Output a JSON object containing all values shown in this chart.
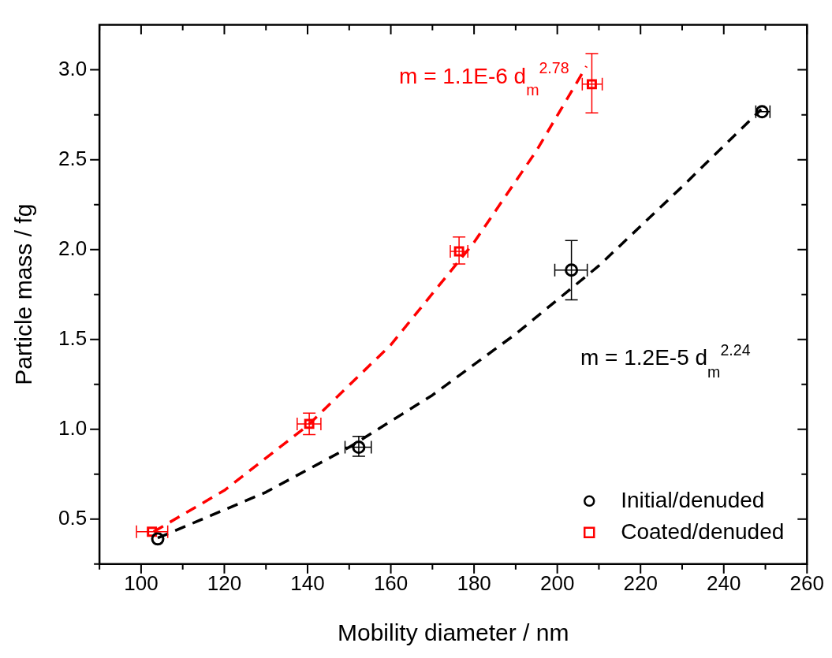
{
  "chart_data": {
    "type": "scatter",
    "xlabel": "Mobility diameter / nm",
    "ylabel": "Particle mass / fg",
    "xlim": [
      90,
      260
    ],
    "xticks": [
      100,
      120,
      140,
      160,
      180,
      200,
      220,
      240,
      260
    ],
    "ylim": [
      0.25,
      3.25
    ],
    "yticks": [
      0.5,
      {
        "value": 1,
        "label": "1.0"
      },
      1.5,
      {
        "value": 2,
        "label": "2.0"
      },
      2.5,
      {
        "value": 3,
        "label": "3.0"
      }
    ],
    "grid": false,
    "legend": "bottom right",
    "series": [
      {
        "name": "Initial/denuded",
        "color": "#000000",
        "marker": "circle",
        "x": [
          104,
          152.3,
          203.4,
          249.2
        ],
        "values": [
          0.39,
          0.9,
          1.886,
          2.767
        ],
        "errors": [
          null,
          [
            0.85,
            0.96
          ],
          [
            1.72,
            2.05
          ],
          null
        ],
        "xerrors": [
          null,
          [
            149,
            155.3
          ],
          [
            199.4,
            207.2
          ],
          [
            247.7,
            251.1
          ]
        ]
      },
      {
        "name": "Coated/denuded",
        "color": "#ff0000",
        "marker": "square",
        "x": [
          102.6,
          140.4,
          176.4,
          208.3
        ],
        "values": [
          0.43,
          1.03,
          1.99,
          2.92
        ],
        "errors": [
          null,
          [
            0.97,
            1.09
          ],
          [
            1.92,
            2.07
          ],
          [
            2.76,
            3.09
          ]
        ],
        "xerrors": [
          [
            98.9,
            106.4
          ],
          [
            137.5,
            143.2
          ],
          [
            174.3,
            178.5
          ],
          [
            206,
            210.8
          ]
        ]
      },
      {
        "type": "line",
        "name": "m = 1.2E-5 d$_{m}$$^{2.24}$",
        "color": "#000000",
        "line_style": "dashed",
        "marker": "none",
        "x": [
          104,
          130,
          150,
          170,
          190,
          210,
          230,
          249
        ],
        "values": [
          0.395,
          0.65,
          0.9,
          1.19,
          1.53,
          1.91,
          2.35,
          2.78
        ]
      },
      {
        "type": "line",
        "name": "m = 1.1E-6 d$_{m}$$^{2.78}$",
        "color": "#ff0000",
        "line_style": "dashed",
        "marker": "none",
        "x": [
          103,
          120,
          140,
          160,
          180,
          195,
          207
        ],
        "values": [
          0.43,
          0.66,
          1.02,
          1.47,
          2.04,
          2.55,
          3.02
        ]
      }
    ]
  }
}
